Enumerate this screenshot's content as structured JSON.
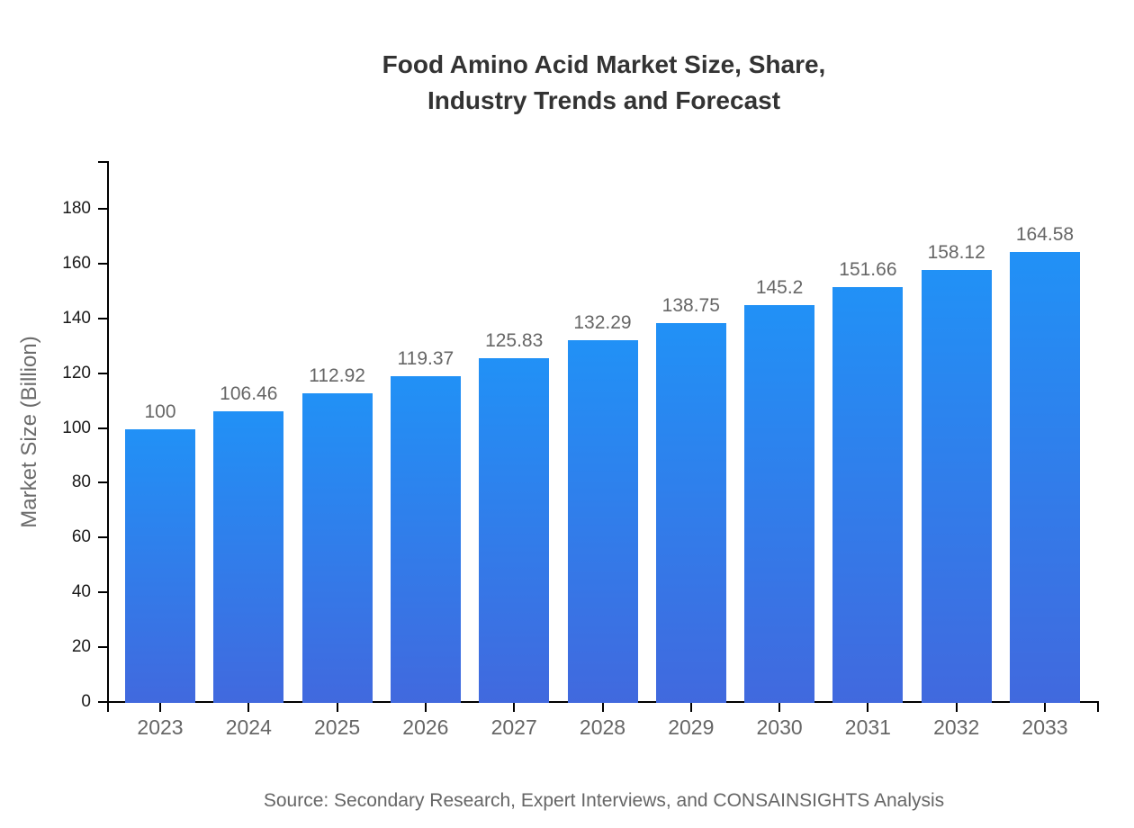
{
  "chart_data": {
    "type": "bar",
    "title": "Food Amino Acid Market Size, Share, Industry Trends and Forecast",
    "title_lines": [
      "Food Amino Acid Market Size, Share,",
      "Industry Trends and Forecast"
    ],
    "ylabel": "Market Size (Billion)",
    "xlabel": "",
    "categories": [
      "2023",
      "2024",
      "2025",
      "2026",
      "2027",
      "2028",
      "2029",
      "2030",
      "2031",
      "2032",
      "2033"
    ],
    "values": [
      100,
      106.46,
      112.92,
      119.37,
      125.83,
      132.29,
      138.75,
      145.2,
      151.66,
      158.12,
      164.58
    ],
    "yticks": [
      0,
      20,
      40,
      60,
      80,
      100,
      120,
      140,
      160,
      180
    ],
    "ylim": [
      0,
      198
    ],
    "grid": false,
    "legend_position": "none",
    "colors": {
      "bar_gradient_top": "#2191f6",
      "bar_gradient_bottom": "#4169de",
      "axis": "#000000",
      "title_text": "#333333",
      "value_label_text": "#666666",
      "x_tick_text": "#666666",
      "y_tick_text": "#1a1a1a",
      "y_axis_title_text": "#6b6b6b"
    }
  },
  "source_note": "Source: Secondary Research, Expert Interviews, and CONSAINSIGHTS Analysis"
}
